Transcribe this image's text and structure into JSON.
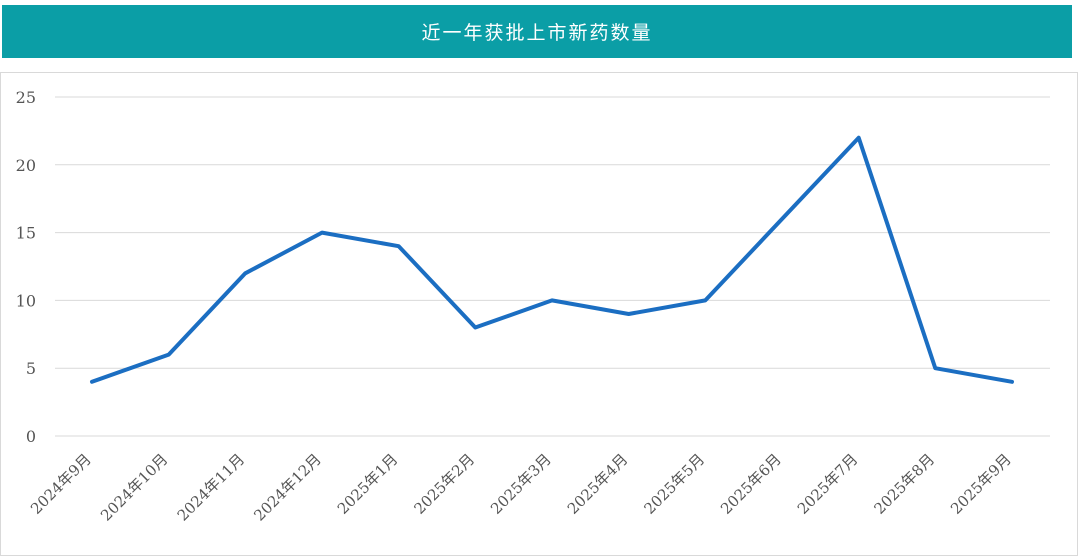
{
  "chart_data": {
    "type": "line",
    "title": "近一年获批上市新药数量",
    "categories": [
      "2024年9月",
      "2024年10月",
      "2024年11月",
      "2024年12月",
      "2025年1月",
      "2025年2月",
      "2025年3月",
      "2025年4月",
      "2025年5月",
      "2025年6月",
      "2025年7月",
      "2025年8月",
      "2025年9月"
    ],
    "series": [
      {
        "values": [
          4,
          6,
          12,
          15,
          14,
          8,
          10,
          9,
          10,
          16,
          22,
          5,
          4
        ]
      }
    ],
    "ylim": [
      0,
      25
    ],
    "yticks": [
      0,
      5,
      10,
      15,
      20,
      25
    ],
    "grid": true,
    "colors": {
      "line": "#1b6ec2",
      "title_bg": "#0b9ea6",
      "grid": "#d9d9d9"
    }
  }
}
